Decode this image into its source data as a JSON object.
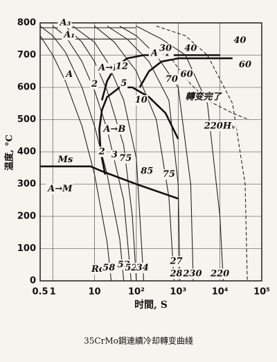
{
  "chart_data": {
    "type": "line",
    "caption": "35CrMo鋼連續冷却轉变曲綫",
    "x_label": "时間, S",
    "y_label": "温度, °C",
    "log_x": true,
    "grid": true,
    "xlim": [
      0.5,
      100000
    ],
    "ylim": [
      0,
      800
    ],
    "xticks": [
      0.5,
      1,
      10,
      {
        "value": 100,
        "label": "10²"
      },
      {
        "value": 1000,
        "label": "10³"
      },
      {
        "value": 10000,
        "label": "10⁴"
      },
      {
        "value": 100000,
        "label": "10⁵"
      }
    ],
    "yticks": [
      0,
      100,
      200,
      300,
      400,
      500,
      600,
      700,
      800
    ],
    "series": [
      {
        "style": "thin",
        "color": "#222",
        "x": [
          0.5,
          100
        ],
        "values": [
          785,
          785
        ]
      },
      {
        "style": "thin",
        "color": "#222",
        "x": [
          0.5,
          100
        ],
        "values": [
          750,
          750
        ]
      },
      {
        "style": "thin",
        "color": "#222",
        "x": [
          0.5,
          1,
          2,
          5,
          10,
          20,
          25
        ],
        "values": [
          760,
          700,
          620,
          480,
          330,
          120,
          0
        ]
      },
      {
        "style": "thin",
        "color": "#222",
        "x": [
          0.5,
          1,
          2,
          5,
          10,
          20,
          40,
          50
        ],
        "values": [
          790,
          760,
          710,
          600,
          480,
          330,
          130,
          0
        ]
      },
      {
        "style": "thin",
        "color": "#222",
        "x": [
          1,
          2,
          5,
          10,
          20,
          50,
          75
        ],
        "values": [
          790,
          760,
          680,
          590,
          470,
          250,
          0
        ]
      },
      {
        "style": "thin",
        "color": "#222",
        "x": [
          2,
          5,
          10,
          20,
          50,
          80,
          100
        ],
        "values": [
          790,
          740,
          680,
          590,
          420,
          200,
          0
        ]
      },
      {
        "style": "thin",
        "color": "#222",
        "x": [
          3,
          10,
          20,
          50,
          100,
          150
        ],
        "values": [
          790,
          740,
          680,
          560,
          380,
          0
        ]
      },
      {
        "style": "thin",
        "color": "#222",
        "x": [
          10,
          30,
          100,
          300,
          600,
          800
        ],
        "values": [
          790,
          740,
          650,
          500,
          260,
          0
        ]
      },
      {
        "style": "thin",
        "color": "#222",
        "x": [
          20,
          60,
          200,
          600,
          1000,
          1100
        ],
        "values": [
          790,
          750,
          680,
          560,
          300,
          0
        ]
      },
      {
        "style": "thin",
        "color": "#222",
        "x": [
          40,
          100,
          300,
          1000,
          2000,
          2300
        ],
        "values": [
          790,
          760,
          700,
          600,
          300,
          0
        ]
      },
      {
        "style": "thin",
        "color": "#222",
        "x": [
          100,
          400,
          1500,
          5000,
          10000,
          12000
        ],
        "values": [
          790,
          750,
          700,
          550,
          200,
          0
        ]
      },
      {
        "style": "dashed",
        "color": "#222",
        "x": [
          300,
          1500,
          5000,
          20000,
          40000,
          45000
        ],
        "values": [
          790,
          760,
          700,
          550,
          300,
          0
        ]
      },
      {
        "style": "thick",
        "color": "#111",
        "x": [
          15,
          20,
          30,
          60,
          150,
          500,
          2000,
          10000
        ],
        "values": [
          560,
          620,
          660,
          690,
          700,
          700,
          700,
          700
        ]
      },
      {
        "style": "thick",
        "color": "#111",
        "x": [
          120,
          200,
          400,
          1000,
          5000,
          20000
        ],
        "values": [
          600,
          650,
          680,
          690,
          690,
          690
        ]
      },
      {
        "style": "thick",
        "color": "#111",
        "x": [
          18,
          14,
          13,
          15,
          20,
          40,
          80,
          200,
          500,
          1000
        ],
        "values": [
          330,
          400,
          470,
          530,
          570,
          600,
          600,
          570,
          520,
          440
        ]
      },
      {
        "style": "thick",
        "color": "#111",
        "x": [
          0.5,
          8,
          15,
          100,
          1000
        ],
        "values": [
          355,
          355,
          340,
          300,
          255
        ]
      },
      {
        "style": "dashed",
        "color": "#222",
        "x": [
          600,
          1000,
          2000,
          5000,
          20000,
          50000
        ],
        "values": [
          700,
          660,
          610,
          560,
          520,
          500
        ]
      }
    ],
    "annotations": [
      {
        "text": "A₃",
        "x": 2,
        "y": 800
      },
      {
        "text": "A₁",
        "x": 2.5,
        "y": 762
      },
      {
        "text": "A",
        "x": 2.5,
        "y": 640
      },
      {
        "text": "A→F",
        "x": 22,
        "y": 660
      },
      {
        "text": "A→P",
        "x": 400,
        "y": 705
      },
      {
        "text": "A→B",
        "x": 30,
        "y": 470
      },
      {
        "text": "A→M",
        "x": 1.5,
        "y": 285
      },
      {
        "text": "Ms",
        "x": 2,
        "y": 375
      },
      {
        "text": "轉变完了",
        "x": 4000,
        "y": 570
      },
      {
        "text": "220Hᵥ",
        "x": 10000,
        "y": 480
      },
      {
        "text": "2",
        "x": 10,
        "y": 610
      },
      {
        "text": "12",
        "x": 45,
        "y": 665
      },
      {
        "text": "5",
        "x": 50,
        "y": 612
      },
      {
        "text": "10",
        "x": 130,
        "y": 560
      },
      {
        "text": "30",
        "x": 500,
        "y": 720
      },
      {
        "text": "40",
        "x": 2000,
        "y": 720
      },
      {
        "text": "40",
        "x": 30000,
        "y": 745
      },
      {
        "text": "70",
        "x": 700,
        "y": 625
      },
      {
        "text": "60",
        "x": 1600,
        "y": 640
      },
      {
        "text": "60",
        "x": 40000,
        "y": 670
      },
      {
        "text": "2",
        "x": 15,
        "y": 400
      },
      {
        "text": "3",
        "x": 30,
        "y": 390
      },
      {
        "text": "75",
        "x": 55,
        "y": 380
      },
      {
        "text": "85",
        "x": 180,
        "y": 340
      },
      {
        "text": "75",
        "x": 600,
        "y": 330
      },
      {
        "text": "Rc",
        "x": 12,
        "y": 35
      },
      {
        "text": "58",
        "x": 22,
        "y": 40
      },
      {
        "text": "53",
        "x": 50,
        "y": 50
      },
      {
        "text": "52",
        "x": 75,
        "y": 40
      },
      {
        "text": "34",
        "x": 140,
        "y": 40
      },
      {
        "text": "27",
        "x": 900,
        "y": 60
      },
      {
        "text": "28",
        "x": 900,
        "y": 22
      },
      {
        "text": "230",
        "x": 2200,
        "y": 22
      },
      {
        "text": "220",
        "x": 10000,
        "y": 22
      }
    ]
  }
}
